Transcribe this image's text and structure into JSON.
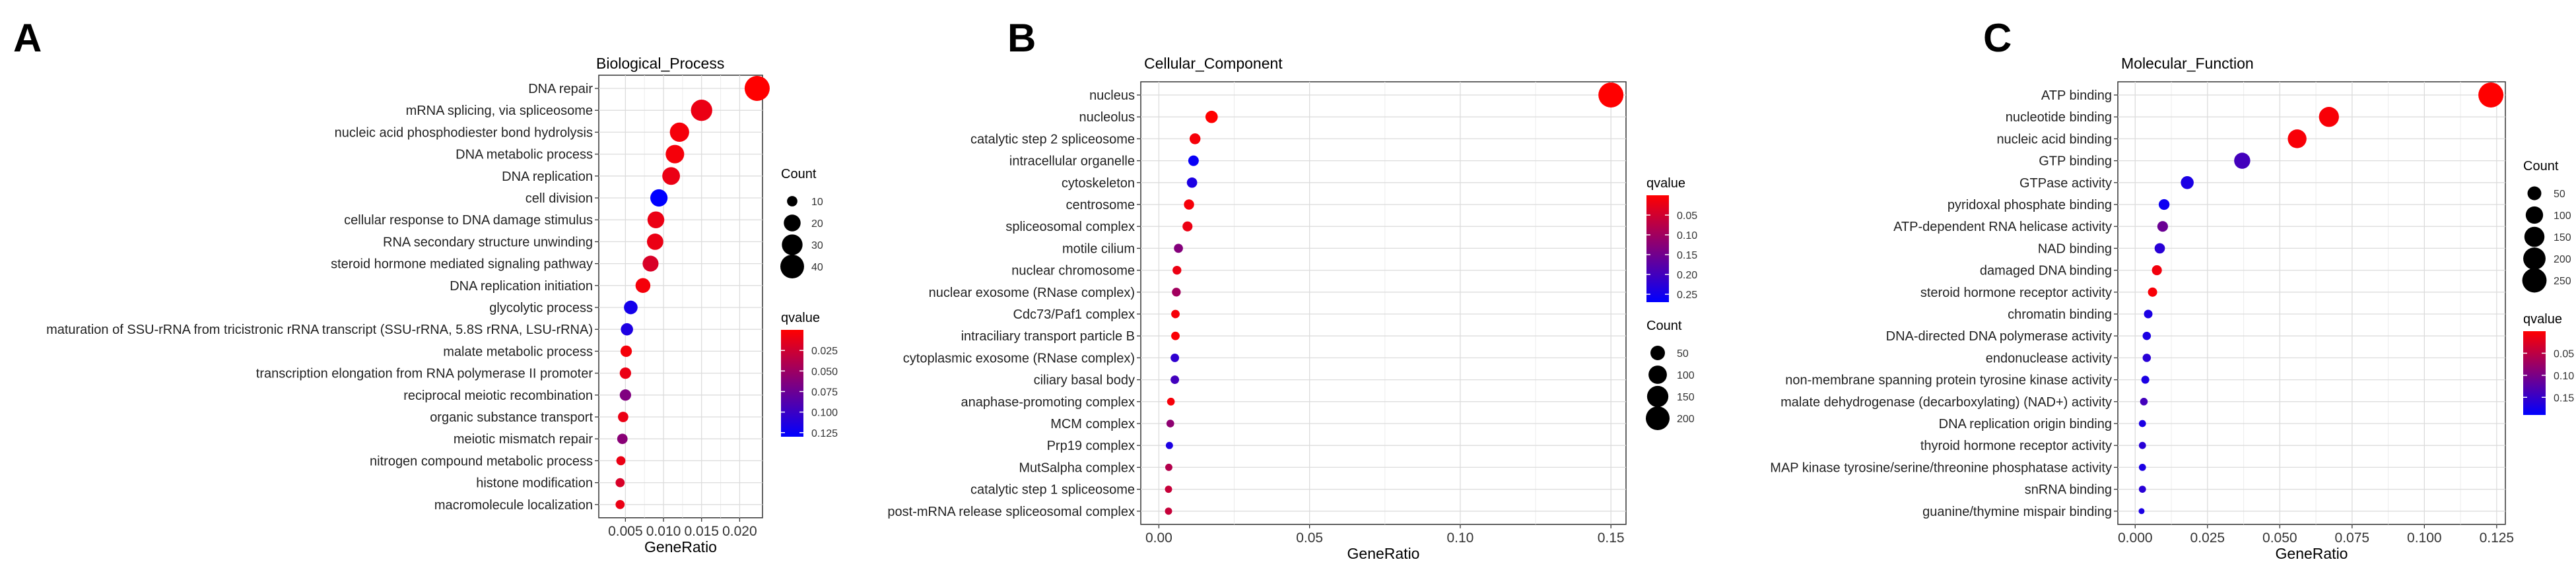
{
  "panels": [
    {
      "letter": "A",
      "title": "Biological_Process",
      "chart_data": {
        "type": "scatter",
        "title": "Biological_Process",
        "xlabel": "GeneRatio",
        "ylabel": "",
        "xlim": [
          0.0015,
          0.023
        ],
        "xticks": [
          0.005,
          0.01,
          0.015,
          0.02
        ],
        "xtick_labels": [
          "0.005",
          "0.010",
          "0.015",
          "0.020"
        ],
        "grid": true,
        "legend_placement": "right",
        "color_scale": {
          "name": "qvalue",
          "domain": [
            0.13,
            0.0
          ],
          "low_color": "#FF0000",
          "high_color": "#0000FF",
          "ticks": [
            0.025,
            0.05,
            0.075,
            0.1,
            0.125
          ],
          "tick_labels": [
            "0.025",
            "0.050",
            "0.075",
            "0.100",
            "0.125"
          ]
        },
        "size_scale": {
          "name": "Count",
          "ticks": [
            10,
            20,
            30,
            40
          ],
          "tick_labels": [
            "10",
            "20",
            "30",
            "40"
          ],
          "min": 8,
          "max": 45
        },
        "points": [
          {
            "term": "DNA repair",
            "x": 0.0223,
            "count": 45,
            "qvalue": 0.0
          },
          {
            "term": "mRNA splicing, via spliceosome",
            "x": 0.015,
            "count": 32,
            "qvalue": 0.01
          },
          {
            "term": "nucleic acid phosphodiester bond hydrolysis",
            "x": 0.0121,
            "count": 26,
            "qvalue": 0.005
          },
          {
            "term": "DNA metabolic process",
            "x": 0.0115,
            "count": 24,
            "qvalue": 0.005
          },
          {
            "term": "DNA replication",
            "x": 0.011,
            "count": 22,
            "qvalue": 0.01
          },
          {
            "term": "cell division",
            "x": 0.0094,
            "count": 21,
            "qvalue": 0.13
          },
          {
            "term": "cellular response to DNA damage stimulus",
            "x": 0.009,
            "count": 20,
            "qvalue": 0.01
          },
          {
            "term": "RNA secondary structure unwinding",
            "x": 0.0089,
            "count": 19,
            "qvalue": 0.01
          },
          {
            "term": "steroid hormone mediated signaling pathway",
            "x": 0.0083,
            "count": 18,
            "qvalue": 0.02
          },
          {
            "term": "DNA replication initiation",
            "x": 0.0073,
            "count": 16,
            "qvalue": 0.005
          },
          {
            "term": "glycolytic process",
            "x": 0.0057,
            "count": 14,
            "qvalue": 0.12
          },
          {
            "term": "maturation of SSU-rRNA from tricistronic rRNA transcript (SSU-rRNA, 5.8S rRNA, LSU-rRNA)",
            "x": 0.0052,
            "count": 12,
            "qvalue": 0.115
          },
          {
            "term": "malate metabolic process",
            "x": 0.0051,
            "count": 11,
            "qvalue": 0.005
          },
          {
            "term": "transcription elongation from RNA polymerase II promoter",
            "x": 0.005,
            "count": 11,
            "qvalue": 0.01
          },
          {
            "term": "reciprocal meiotic recombination",
            "x": 0.005,
            "count": 11,
            "qvalue": 0.065
          },
          {
            "term": "organic substance transport",
            "x": 0.0047,
            "count": 10,
            "qvalue": 0.01
          },
          {
            "term": "meiotic mismatch repair",
            "x": 0.0046,
            "count": 10,
            "qvalue": 0.06
          },
          {
            "term": "nitrogen compound metabolic process",
            "x": 0.0044,
            "count": 9,
            "qvalue": 0.01
          },
          {
            "term": "histone modification",
            "x": 0.0043,
            "count": 9,
            "qvalue": 0.02
          },
          {
            "term": "macromolecule localization",
            "x": 0.0043,
            "count": 9,
            "qvalue": 0.01
          }
        ]
      }
    },
    {
      "letter": "B",
      "title": "Cellular_Component",
      "chart_data": {
        "type": "scatter",
        "title": "Cellular_Component",
        "xlabel": "GeneRatio",
        "ylabel": "",
        "xlim": [
          -0.006,
          0.155
        ],
        "xticks": [
          0.0,
          0.05,
          0.1,
          0.15
        ],
        "xtick_labels": [
          "0.00",
          "0.05",
          "0.10",
          "0.15"
        ],
        "grid": true,
        "legend_placement": "right",
        "color_scale": {
          "name": "qvalue",
          "domain": [
            0.27,
            0.0
          ],
          "low_color": "#FF0000",
          "high_color": "#0000FF",
          "ticks": [
            0.05,
            0.1,
            0.15,
            0.2,
            0.25
          ],
          "tick_labels": [
            "0.05",
            "0.10",
            "0.15",
            "0.20",
            "0.25"
          ]
        },
        "size_scale": {
          "name": "Count",
          "ticks": [
            50,
            100,
            150,
            200
          ],
          "tick_labels": [
            "50",
            "100",
            "150",
            "200"
          ],
          "min": 5,
          "max": 230
        },
        "points": [
          {
            "term": "nucleus",
            "x": 0.15,
            "count": 230,
            "qvalue": 0.0
          },
          {
            "term": "nucleolus",
            "x": 0.0175,
            "count": 30,
            "qvalue": 0.0
          },
          {
            "term": "catalytic step 2 spliceosome",
            "x": 0.012,
            "count": 20,
            "qvalue": 0.01
          },
          {
            "term": "intracellular organelle",
            "x": 0.0115,
            "count": 18,
            "qvalue": 0.26
          },
          {
            "term": "cytoskeleton",
            "x": 0.011,
            "count": 17,
            "qvalue": 0.24
          },
          {
            "term": "centrosome",
            "x": 0.01,
            "count": 16,
            "qvalue": 0.01
          },
          {
            "term": "spliceosomal complex",
            "x": 0.0095,
            "count": 15,
            "qvalue": 0.02
          },
          {
            "term": "motile cilium",
            "x": 0.0065,
            "count": 11,
            "qvalue": 0.13
          },
          {
            "term": "nuclear chromosome",
            "x": 0.006,
            "count": 10,
            "qvalue": 0.02
          },
          {
            "term": "nuclear exosome (RNase complex)",
            "x": 0.0058,
            "count": 10,
            "qvalue": 0.1
          },
          {
            "term": "Cdc73/Paf1 complex",
            "x": 0.0055,
            "count": 9,
            "qvalue": 0.01
          },
          {
            "term": "intraciliary transport particle B",
            "x": 0.0055,
            "count": 9,
            "qvalue": 0.005
          },
          {
            "term": "cytoplasmic exosome (RNase complex)",
            "x": 0.0053,
            "count": 9,
            "qvalue": 0.22
          },
          {
            "term": "ciliary basal body",
            "x": 0.0053,
            "count": 9,
            "qvalue": 0.2
          },
          {
            "term": "anaphase-promoting complex",
            "x": 0.004,
            "count": 7,
            "qvalue": 0.01
          },
          {
            "term": "MCM complex",
            "x": 0.0038,
            "count": 7,
            "qvalue": 0.12
          },
          {
            "term": "Prp19 complex",
            "x": 0.0035,
            "count": 6,
            "qvalue": 0.24
          },
          {
            "term": "MutSalpha complex",
            "x": 0.0033,
            "count": 6,
            "qvalue": 0.08
          },
          {
            "term": "catalytic step 1 spliceosome",
            "x": 0.0032,
            "count": 6,
            "qvalue": 0.06
          },
          {
            "term": "post-mRNA release spliceosomal complex",
            "x": 0.0032,
            "count": 6,
            "qvalue": 0.06
          }
        ]
      }
    },
    {
      "letter": "C",
      "title": "Molecular_Function",
      "chart_data": {
        "type": "scatter",
        "title": "Molecular_Function",
        "xlabel": "GeneRatio",
        "ylabel": "",
        "xlim": [
          -0.006,
          0.128
        ],
        "xticks": [
          0.0,
          0.025,
          0.05,
          0.075,
          0.1,
          0.125
        ],
        "xtick_labels": [
          "0.000",
          "0.025",
          "0.050",
          "0.075",
          "0.100",
          "0.125"
        ],
        "grid": true,
        "legend_placement": "right",
        "color_scale": {
          "name": "qvalue",
          "domain": [
            0.19,
            0.0
          ],
          "low_color": "#FF0000",
          "high_color": "#0000FF",
          "ticks": [
            0.05,
            0.1,
            0.15
          ],
          "tick_labels": [
            "0.05",
            "0.10",
            "0.15"
          ]
        },
        "size_scale": {
          "name": "Count",
          "ticks": [
            50,
            100,
            150,
            200,
            250
          ],
          "tick_labels": [
            "50",
            "100",
            "150",
            "200",
            "250"
          ],
          "min": 5,
          "max": 270
        },
        "points": [
          {
            "term": "ATP binding",
            "x": 0.123,
            "count": 270,
            "qvalue": 0.0
          },
          {
            "term": "nucleotide binding",
            "x": 0.067,
            "count": 148,
            "qvalue": 0.005
          },
          {
            "term": "nucleic acid binding",
            "x": 0.056,
            "count": 124,
            "qvalue": 0.005
          },
          {
            "term": "GTP binding",
            "x": 0.037,
            "count": 80,
            "qvalue": 0.14
          },
          {
            "term": "GTPase activity",
            "x": 0.018,
            "count": 40,
            "qvalue": 0.17
          },
          {
            "term": "pyridoxal phosphate binding",
            "x": 0.01,
            "count": 22,
            "qvalue": 0.18
          },
          {
            "term": "ATP-dependent RNA helicase activity",
            "x": 0.0095,
            "count": 21,
            "qvalue": 0.11
          },
          {
            "term": "NAD binding",
            "x": 0.0085,
            "count": 19,
            "qvalue": 0.16
          },
          {
            "term": "damaged DNA binding",
            "x": 0.0075,
            "count": 17,
            "qvalue": 0.01
          },
          {
            "term": "steroid hormone receptor activity",
            "x": 0.006,
            "count": 13,
            "qvalue": 0.005
          },
          {
            "term": "chromatin binding",
            "x": 0.0045,
            "count": 10,
            "qvalue": 0.17
          },
          {
            "term": "DNA-directed DNA polymerase activity",
            "x": 0.004,
            "count": 9,
            "qvalue": 0.17
          },
          {
            "term": "endonuclease activity",
            "x": 0.004,
            "count": 9,
            "qvalue": 0.16
          },
          {
            "term": "non-membrane spanning protein tyrosine kinase activity",
            "x": 0.0035,
            "count": 8,
            "qvalue": 0.17
          },
          {
            "term": "malate dehydrogenase (decarboxylating) (NAD+) activity",
            "x": 0.003,
            "count": 7,
            "qvalue": 0.14
          },
          {
            "term": "DNA replication origin binding",
            "x": 0.0025,
            "count": 6,
            "qvalue": 0.17
          },
          {
            "term": "thyroid hormone receptor activity",
            "x": 0.0025,
            "count": 6,
            "qvalue": 0.16
          },
          {
            "term": "MAP kinase tyrosine/serine/threonine phosphatase activity",
            "x": 0.0025,
            "count": 6,
            "qvalue": 0.17
          },
          {
            "term": "snRNA binding",
            "x": 0.0025,
            "count": 6,
            "qvalue": 0.16
          },
          {
            "term": "guanine/thymine mispair binding",
            "x": 0.0022,
            "count": 5,
            "qvalue": 0.17
          }
        ]
      }
    }
  ]
}
